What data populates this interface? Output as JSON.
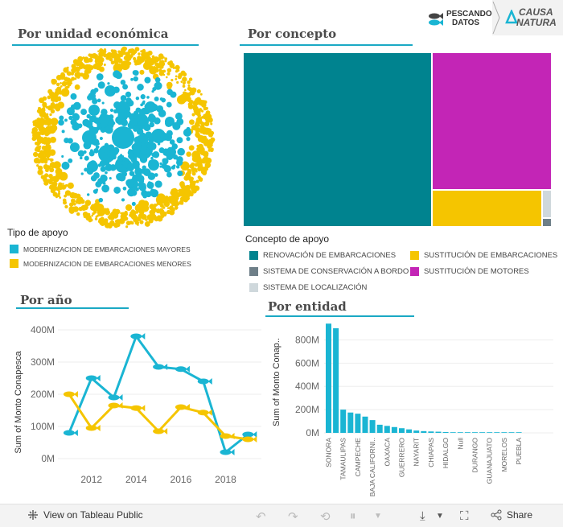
{
  "brand": {
    "pescando_line1": "PESCANDO",
    "pescando_line2": "DATOS",
    "causa_line1": "CAUSA",
    "causa_line2": "NATURA"
  },
  "sections": {
    "unidad": "Por unidad económica",
    "concepto": "Por concepto",
    "anio": "Por año",
    "entidad": "Por entidad"
  },
  "colors": {
    "teal": "#1ab5d3",
    "yellow": "#f5c500",
    "darkteal": "#00838f",
    "magenta": "#c325b6",
    "gray": "#6e7f88",
    "lightgray": "#cfd8dc"
  },
  "tipo_legend": {
    "title": "Tipo de apoyo",
    "items": [
      {
        "label": "MODERNIZACION DE EMBARCACIONES MAYORES",
        "color": "#1ab5d3"
      },
      {
        "label": "MODERNIZACION DE EMBARCACIONES MENORES",
        "color": "#f5c500"
      }
    ]
  },
  "concepto_legend": {
    "title": "Concepto de apoyo",
    "items": [
      {
        "label": "RENOVACIÓN DE EMBARCACIONES",
        "color": "#00838f"
      },
      {
        "label": "SUSTITUCIÓN DE EMBARCACIONES",
        "color": "#f5c500"
      },
      {
        "label": "SISTEMA DE CONSERVACIÓN A BORDO",
        "color": "#6e7f88"
      },
      {
        "label": "SUSTITUCIÓN DE MOTORES",
        "color": "#c325b6"
      },
      {
        "label": "SISTEMA DE LOCALIZACIÓN",
        "color": "#cfd8dc"
      }
    ]
  },
  "chart_data": [
    {
      "type": "packed-bubble",
      "title": "Por unidad económica",
      "series": [
        {
          "name": "MODERNIZACION DE EMBARCACIONES MAYORES",
          "position": "inner"
        },
        {
          "name": "MODERNIZACION DE EMBARCACIONES MENORES",
          "position": "outer ring"
        }
      ]
    },
    {
      "type": "treemap",
      "title": "Por concepto",
      "items": [
        {
          "name": "RENOVACIÓN DE EMBARCACIONES",
          "share": 0.56
        },
        {
          "name": "SUSTITUCIÓN DE MOTORES",
          "share": 0.3
        },
        {
          "name": "SUSTITUCIÓN DE EMBARCACIONES",
          "share": 0.12
        },
        {
          "name": "SISTEMA DE LOCALIZACIÓN",
          "share": 0.012
        },
        {
          "name": "SISTEMA DE CONSERVACIÓN A BORDO",
          "share": 0.008
        }
      ]
    },
    {
      "type": "line",
      "title": "Por año",
      "ylabel": "Sum of Monto Conapesca",
      "ylim": [
        0,
        400000000
      ],
      "yticks": [
        "0M",
        "100M",
        "200M",
        "300M",
        "400M"
      ],
      "xticks": [
        "2012",
        "2014",
        "2016",
        "2018"
      ],
      "x": [
        2011,
        2012,
        2013,
        2014,
        2015,
        2016,
        2017,
        2018,
        2019
      ],
      "series": [
        {
          "name": "MODERNIZACION DE EMBARCACIONES MAYORES",
          "color": "#1ab5d3",
          "values": [
            80,
            250,
            190,
            380,
            285,
            278,
            240,
            20,
            75
          ]
        },
        {
          "name": "MODERNIZACION DE EMBARCACIONES MENORES",
          "color": "#f5c500",
          "values": [
            200,
            95,
            165,
            157,
            85,
            160,
            143,
            70,
            60
          ]
        }
      ]
    },
    {
      "type": "bar",
      "title": "Por entidad",
      "ylabel": "Sum of Monto Conap..",
      "ylim": [
        0,
        900000000
      ],
      "yticks": [
        "0M",
        "200M",
        "400M",
        "600M",
        "800M"
      ],
      "categories": [
        "SONORA",
        "",
        "TAMAULIPAS",
        "",
        "CAMPECHE",
        "",
        "BAJA CALIFORNI..",
        "",
        "OAXACA",
        "",
        "GUERRERO",
        "",
        "NAYARIT",
        "",
        "CHIAPAS",
        "",
        "HIDALGO",
        "",
        "Null",
        "",
        "DURANGO",
        "",
        "GUANAJUATO",
        "",
        "MORELOS",
        "",
        "PUEBLA"
      ],
      "values": [
        940,
        900,
        200,
        175,
        165,
        140,
        110,
        70,
        60,
        50,
        40,
        30,
        20,
        15,
        12,
        10,
        7,
        5,
        3,
        2,
        1.5,
        1,
        0.8,
        0.5,
        0.4,
        0.3,
        0.2
      ]
    }
  ],
  "toolbar": {
    "view_label": "View on Tableau Public",
    "share_label": "Share"
  }
}
